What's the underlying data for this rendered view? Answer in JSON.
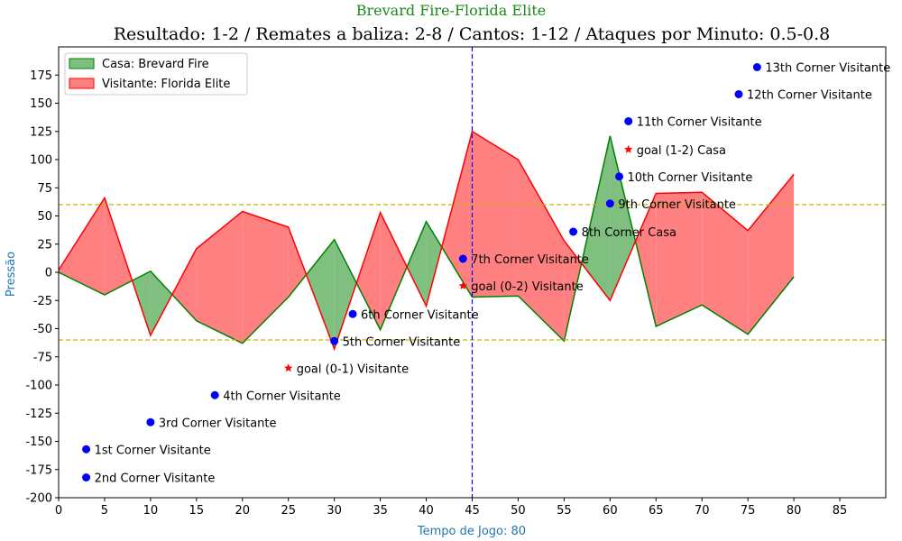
{
  "chart_data": {
    "type": "area",
    "title_top": "Brevard Fire-Florida Elite",
    "title": "Resultado: 1-2 / Remates a baliza: 2-8 / Cantos: 1-12 / Ataques por Minuto: 0.5-0.8",
    "xlabel": "Tempo de Jogo: 80",
    "ylabel": "Pressão",
    "xlim": [
      0,
      90
    ],
    "ylim": [
      -200,
      200
    ],
    "xticks": [
      0,
      5,
      10,
      15,
      20,
      25,
      30,
      35,
      40,
      45,
      50,
      55,
      60,
      65,
      70,
      75,
      80,
      85
    ],
    "yticks": [
      -200,
      -175,
      -150,
      -125,
      -100,
      -75,
      -50,
      -25,
      0,
      25,
      50,
      75,
      100,
      125,
      150,
      175
    ],
    "x": [
      0,
      5,
      10,
      15,
      20,
      25,
      30,
      35,
      40,
      45,
      50,
      55,
      60,
      65,
      70,
      75,
      80
    ],
    "series": [
      {
        "name": "Casa: Brevard Fire",
        "color": "#008000",
        "fill": "#7fbf7f",
        "values": [
          0,
          -20,
          1,
          -43,
          -63,
          -22,
          29,
          -51,
          45,
          -22,
          -21,
          -61,
          121,
          -48,
          -29,
          -55,
          -4
        ]
      },
      {
        "name": "Visitante: Florida Elite",
        "color": "#ff0000",
        "fill": "#ff8080",
        "values": [
          2,
          66,
          -56,
          21,
          54,
          40,
          -68,
          53,
          -30,
          125,
          100,
          28,
          -25,
          70,
          71,
          37,
          87
        ]
      }
    ],
    "hlines": [
      60,
      -60
    ],
    "vline": 45,
    "legend": "top-left",
    "annotations": [
      {
        "x": 3,
        "y": -157,
        "label": "1st Corner Visitante",
        "marker": "dot"
      },
      {
        "x": 3,
        "y": -182,
        "label": "2nd Corner Visitante",
        "marker": "dot"
      },
      {
        "x": 10,
        "y": -133,
        "label": "3rd Corner Visitante",
        "marker": "dot"
      },
      {
        "x": 17,
        "y": -109,
        "label": "4th Corner Visitante",
        "marker": "dot"
      },
      {
        "x": 25,
        "y": -85,
        "label": "goal (0-1) Visitante",
        "marker": "star"
      },
      {
        "x": 30,
        "y": -61,
        "label": "5th Corner Visitante",
        "marker": "dot"
      },
      {
        "x": 32,
        "y": -37,
        "label": "6th Corner Visitante",
        "marker": "dot"
      },
      {
        "x": 44,
        "y": -12,
        "label": "goal (0-2) Visitante",
        "marker": "star"
      },
      {
        "x": 44,
        "y": 12,
        "label": "7th Corner Visitante",
        "marker": "dot"
      },
      {
        "x": 56,
        "y": 36,
        "label": "8th Corner Casa",
        "marker": "dot"
      },
      {
        "x": 60,
        "y": 61,
        "label": "9th Corner Visitante",
        "marker": "dot"
      },
      {
        "x": 61,
        "y": 85,
        "label": "10th Corner Visitante",
        "marker": "dot"
      },
      {
        "x": 62,
        "y": 109,
        "label": "goal (1-2) Casa",
        "marker": "star"
      },
      {
        "x": 62,
        "y": 134,
        "label": "11th Corner Visitante",
        "marker": "dot"
      },
      {
        "x": 74,
        "y": 158,
        "label": "12th Corner Visitante",
        "marker": "dot"
      },
      {
        "x": 76,
        "y": 182,
        "label": "13th Corner Visitante",
        "marker": "dot"
      }
    ]
  }
}
